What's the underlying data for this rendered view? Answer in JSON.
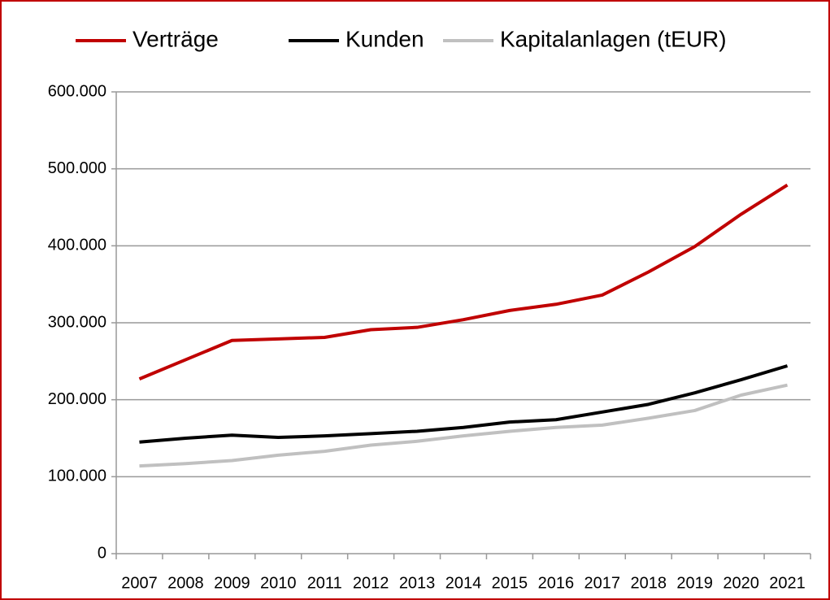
{
  "chart_data": {
    "type": "line",
    "categories": [
      "2007",
      "2008",
      "2009",
      "2010",
      "2011",
      "2012",
      "2013",
      "2014",
      "2015",
      "2016",
      "2017",
      "2018",
      "2019",
      "2020",
      "2021"
    ],
    "series": [
      {
        "name": "Verträge",
        "color": "#c00000",
        "values": [
          227000,
          252000,
          277000,
          279000,
          281000,
          291000,
          294000,
          304000,
          316000,
          324000,
          336000,
          366000,
          399000,
          441000,
          479000
        ]
      },
      {
        "name": "Kunden",
        "color": "#000000",
        "values": [
          145000,
          150000,
          154000,
          151000,
          153000,
          156000,
          159000,
          164000,
          171000,
          174000,
          184000,
          194000,
          209000,
          226000,
          244000
        ]
      },
      {
        "name": "Kapitalanlagen (tEUR)",
        "color": "#c0c0c0",
        "values": [
          114000,
          117000,
          121000,
          128000,
          133000,
          141000,
          146000,
          153000,
          159000,
          164000,
          167000,
          176000,
          186000,
          206000,
          219000
        ]
      }
    ],
    "ylim": [
      0,
      600000
    ],
    "yticks": [
      0,
      {
        "value": 100000,
        "label": "100.000"
      },
      {
        "value": 200000,
        "label": "200.000"
      },
      {
        "value": 300000,
        "label": "300.000"
      },
      {
        "value": 400000,
        "label": "400.000"
      },
      {
        "value": 500000,
        "label": "500.000"
      },
      {
        "value": 600000,
        "label": "600.000"
      }
    ],
    "grid": true,
    "legend": "top"
  }
}
